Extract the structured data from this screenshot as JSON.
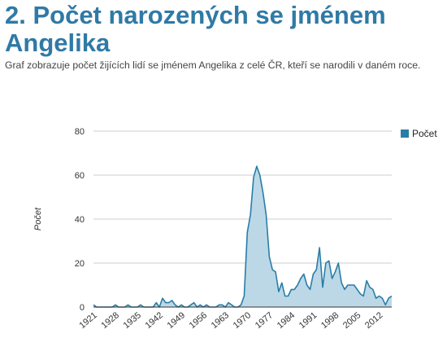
{
  "page": {
    "title": "2. Počet narozených se jménem Angelika",
    "subtitle": "Graf zobrazuje počet žijících lidí se jménem Angelika z celé ČR, kteří se narodili v daném roce."
  },
  "colors": {
    "line": "#2a7da6",
    "fill": "#bcd8e6",
    "grid": "#cccccc",
    "axis": "#333333",
    "title": "#2f7aa6"
  },
  "chart_data": {
    "type": "area",
    "title": "",
    "xlabel": "",
    "ylabel": "Počet",
    "xlim": [
      1921,
      2016
    ],
    "ylim": [
      0,
      80
    ],
    "grid": true,
    "legend_position": "right",
    "x_ticks": [
      "1921",
      "1928",
      "1935",
      "1942",
      "1949",
      "1956",
      "1963",
      "1970",
      "1977",
      "1984",
      "1991",
      "1998",
      "2005",
      "2012"
    ],
    "y_ticks": [
      "0",
      "20",
      "40",
      "60",
      "80"
    ],
    "series": [
      {
        "name": "Počet",
        "x": [
          1921,
          1922,
          1923,
          1924,
          1925,
          1926,
          1927,
          1928,
          1929,
          1930,
          1931,
          1932,
          1933,
          1934,
          1935,
          1936,
          1937,
          1938,
          1939,
          1940,
          1941,
          1942,
          1943,
          1944,
          1945,
          1946,
          1947,
          1948,
          1949,
          1950,
          1951,
          1952,
          1953,
          1954,
          1955,
          1956,
          1957,
          1958,
          1959,
          1960,
          1961,
          1962,
          1963,
          1964,
          1965,
          1966,
          1967,
          1968,
          1969,
          1970,
          1971,
          1972,
          1973,
          1974,
          1975,
          1976,
          1977,
          1978,
          1979,
          1980,
          1981,
          1982,
          1983,
          1984,
          1985,
          1986,
          1987,
          1988,
          1989,
          1990,
          1991,
          1992,
          1993,
          1994,
          1995,
          1996,
          1997,
          1998,
          1999,
          2000,
          2001,
          2002,
          2003,
          2004,
          2005,
          2006,
          2007,
          2008,
          2009,
          2010,
          2011,
          2012,
          2013,
          2014,
          2015,
          2016
        ],
        "values": [
          1,
          0,
          0,
          0,
          0,
          0,
          0,
          1,
          0,
          0,
          0,
          1,
          0,
          0,
          0,
          1,
          0,
          0,
          0,
          0,
          2,
          0,
          4,
          2,
          2,
          3,
          1,
          0,
          1,
          0,
          0,
          1,
          2,
          0,
          1,
          0,
          1,
          0,
          0,
          0,
          1,
          1,
          0,
          2,
          1,
          0,
          0,
          1,
          5,
          34,
          42,
          59,
          64,
          60,
          52,
          42,
          23,
          17,
          16,
          7,
          11,
          5,
          5,
          8,
          8,
          10,
          13,
          15,
          10,
          8,
          15,
          17,
          27,
          9,
          20,
          21,
          13,
          16,
          20,
          11,
          8,
          10,
          10,
          10,
          8,
          6,
          5,
          12,
          9,
          8,
          4,
          5,
          4,
          1,
          4,
          5
        ]
      }
    ]
  }
}
